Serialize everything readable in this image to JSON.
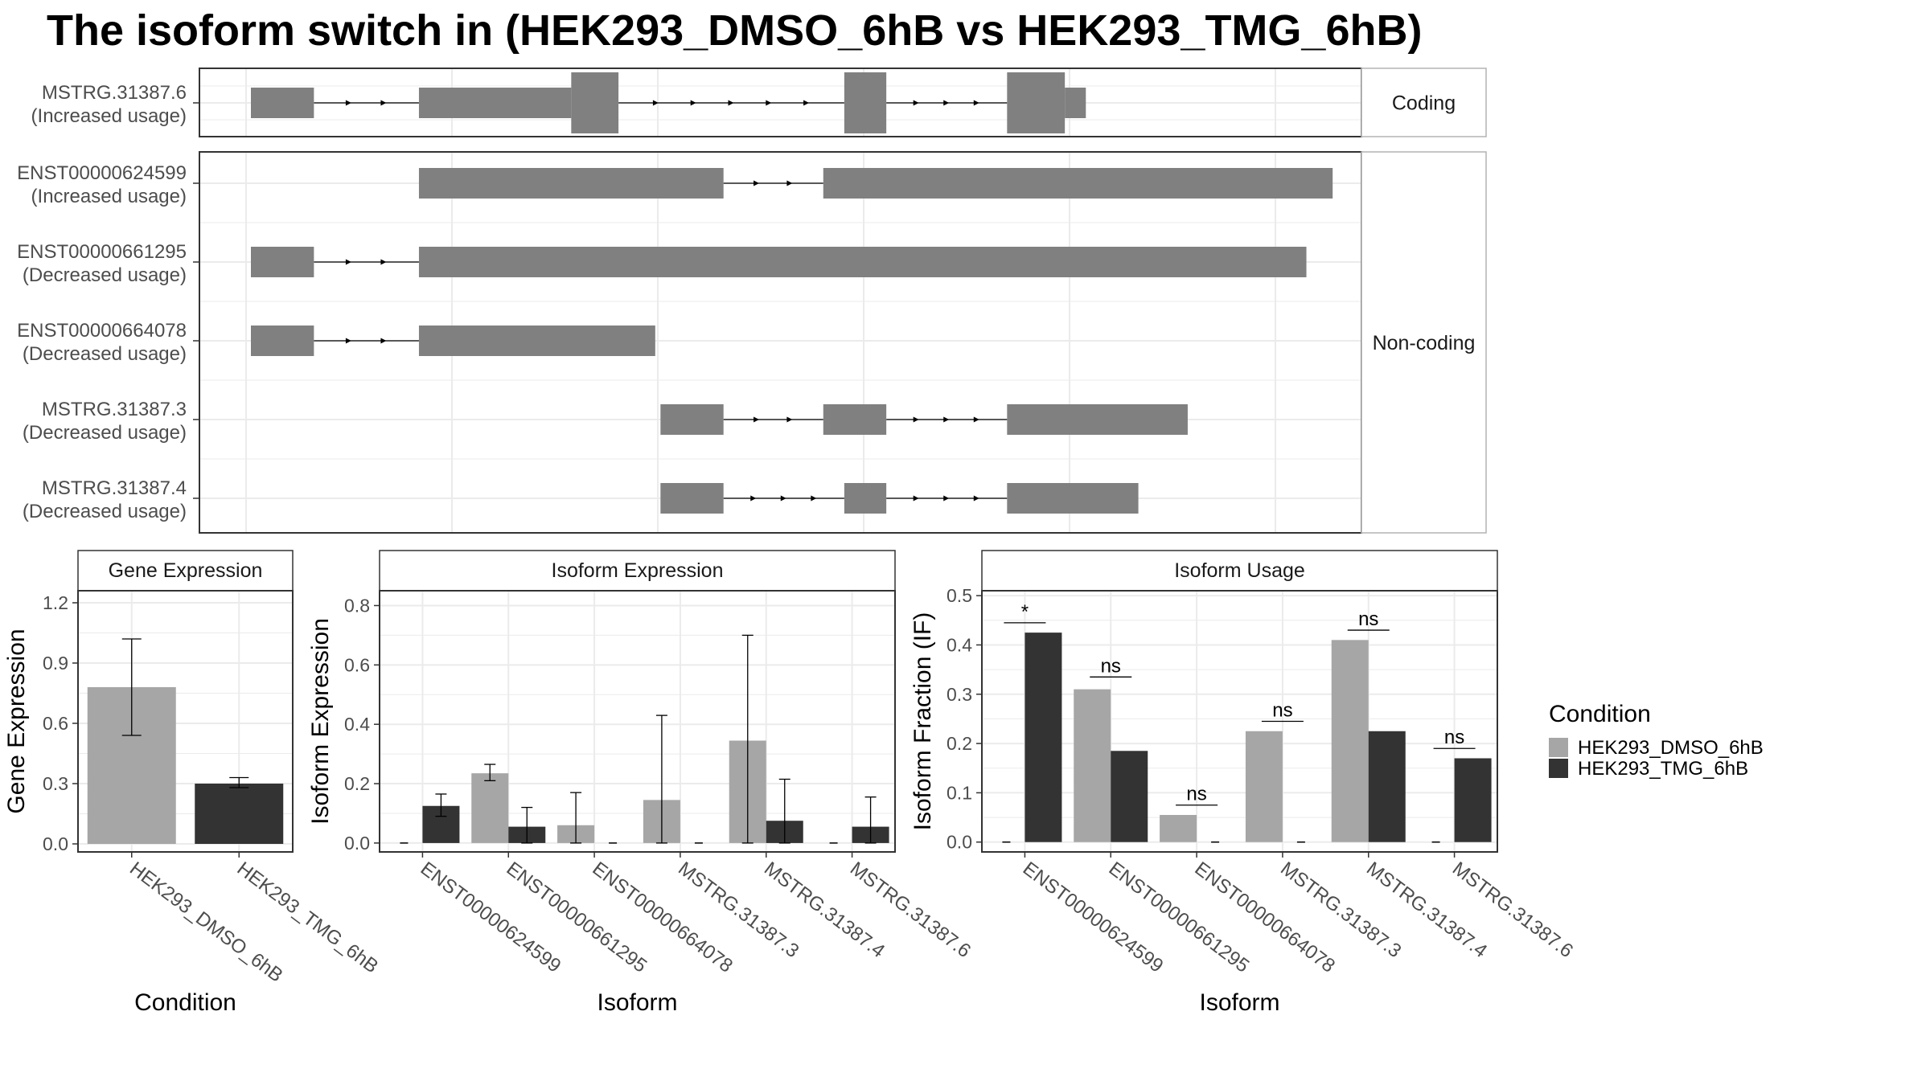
{
  "title": "The isoform switch in  (HEK293_DMSO_6hB vs HEK293_TMG_6hB)",
  "colors": {
    "dmso": "#a6a6a6",
    "tmg": "#333333",
    "exon": "#808080",
    "grid": "#ebebeb"
  },
  "chart_data": [
    {
      "type": "gene-structure",
      "groups": [
        {
          "label": "Coding",
          "isoforms": [
            {
              "id": "MSTRG.31387.6",
              "usage": "(Increased usage)"
            }
          ]
        },
        {
          "label": "Non-coding",
          "isoforms": [
            {
              "id": "ENST00000624599",
              "usage": "(Increased usage)"
            },
            {
              "id": "ENST00000661295",
              "usage": "(Decreased usage)"
            },
            {
              "id": "ENST00000664078",
              "usage": "(Decreased usage)"
            },
            {
              "id": "MSTRG.31387.3",
              "usage": "(Decreased usage)"
            },
            {
              "id": "MSTRG.31387.4",
              "usage": "(Decreased usage)"
            }
          ]
        }
      ],
      "x_range": [
        0,
        1000
      ],
      "exons": {
        "MSTRG.31387.6": [
          [
            0,
            60,
            "n"
          ],
          [
            160,
            305,
            "n"
          ],
          [
            305,
            350,
            "w"
          ],
          [
            565,
            605,
            "w"
          ],
          [
            720,
            775,
            "w"
          ],
          [
            775,
            795,
            "n"
          ]
        ],
        "ENST00000624599": [
          [
            160,
            450,
            "n"
          ],
          [
            545,
            1030,
            "n"
          ]
        ],
        "ENST00000661295": [
          [
            0,
            60,
            "n"
          ],
          [
            160,
            1005,
            "n"
          ]
        ],
        "ENST00000664078": [
          [
            0,
            60,
            "n"
          ],
          [
            160,
            385,
            "n"
          ]
        ],
        "MSTRG.31387.3": [
          [
            390,
            450,
            "n"
          ],
          [
            545,
            605,
            "n"
          ],
          [
            720,
            892,
            "n"
          ]
        ],
        "MSTRG.31387.4": [
          [
            390,
            450,
            "n"
          ],
          [
            565,
            605,
            "n"
          ],
          [
            720,
            845,
            "n"
          ]
        ]
      }
    },
    {
      "type": "bar",
      "title": "Gene Expression",
      "xlabel": "Condition",
      "ylabel": "Gene Expression",
      "ylim": [
        -0.04,
        1.26
      ],
      "yticks": [
        0.0,
        0.3,
        0.6,
        0.9,
        1.2
      ],
      "ytick_labels": [
        "0.0",
        "0.3",
        "0.6",
        "0.9",
        "1.2"
      ],
      "categories": [
        "HEK293_DMSO_6hB",
        "HEK293_TMG_6hB"
      ],
      "values": [
        0.78,
        0.3
      ],
      "err_low": [
        0.54,
        0.28
      ],
      "err_high": [
        1.02,
        0.33
      ]
    },
    {
      "type": "bar",
      "title": "Isoform Expression",
      "xlabel": "Isoform",
      "ylabel": "Isoform Expression",
      "ylim": [
        -0.03,
        0.85
      ],
      "yticks": [
        0.0,
        0.2,
        0.4,
        0.6,
        0.8
      ],
      "ytick_labels": [
        "0.0",
        "0.2",
        "0.4",
        "0.6",
        "0.8"
      ],
      "categories": [
        "ENST00000624599",
        "ENST00000661295",
        "ENST00000664078",
        "MSTRG.31387.3",
        "MSTRG.31387.4",
        "MSTRG.31387.6"
      ],
      "series": [
        {
          "name": "HEK293_DMSO_6hB",
          "values": [
            0.0,
            0.235,
            0.06,
            0.145,
            0.345,
            0.0
          ],
          "err_low": [
            0.0,
            0.21,
            0.0,
            0.0,
            0.0,
            0.0
          ],
          "err_high": [
            0.0,
            0.265,
            0.17,
            0.43,
            0.7,
            0.0
          ]
        },
        {
          "name": "HEK293_TMG_6hB",
          "values": [
            0.125,
            0.055,
            0.0,
            0.0,
            0.075,
            0.055
          ],
          "err_low": [
            0.09,
            0.0,
            0.0,
            0.0,
            0.0,
            0.0
          ],
          "err_high": [
            0.165,
            0.12,
            0.0,
            0.0,
            0.215,
            0.155
          ]
        }
      ]
    },
    {
      "type": "bar",
      "title": "Isoform Usage",
      "xlabel": "Isoform",
      "ylabel": "Isoform Fraction (IF)",
      "ylim": [
        -0.02,
        0.51
      ],
      "yticks": [
        0.0,
        0.1,
        0.2,
        0.3,
        0.4,
        0.5
      ],
      "ytick_labels": [
        "0.0",
        "0.1",
        "0.2",
        "0.3",
        "0.4",
        "0.5"
      ],
      "categories": [
        "ENST00000624599",
        "ENST00000661295",
        "ENST00000664078",
        "MSTRG.31387.3",
        "MSTRG.31387.4",
        "MSTRG.31387.6"
      ],
      "series": [
        {
          "name": "HEK293_DMSO_6hB",
          "values": [
            0.0,
            0.31,
            0.055,
            0.225,
            0.41,
            0.0
          ]
        },
        {
          "name": "HEK293_TMG_6hB",
          "values": [
            0.425,
            0.185,
            0.0,
            0.0,
            0.225,
            0.17
          ]
        }
      ],
      "significance": [
        "*",
        "ns",
        "ns",
        "ns",
        "ns",
        "ns"
      ],
      "sig_y": [
        0.445,
        0.335,
        0.075,
        0.245,
        0.43,
        0.19
      ]
    }
  ],
  "legend": {
    "title": "Condition",
    "items": [
      "HEK293_DMSO_6hB",
      "HEK293_TMG_6hB"
    ]
  }
}
